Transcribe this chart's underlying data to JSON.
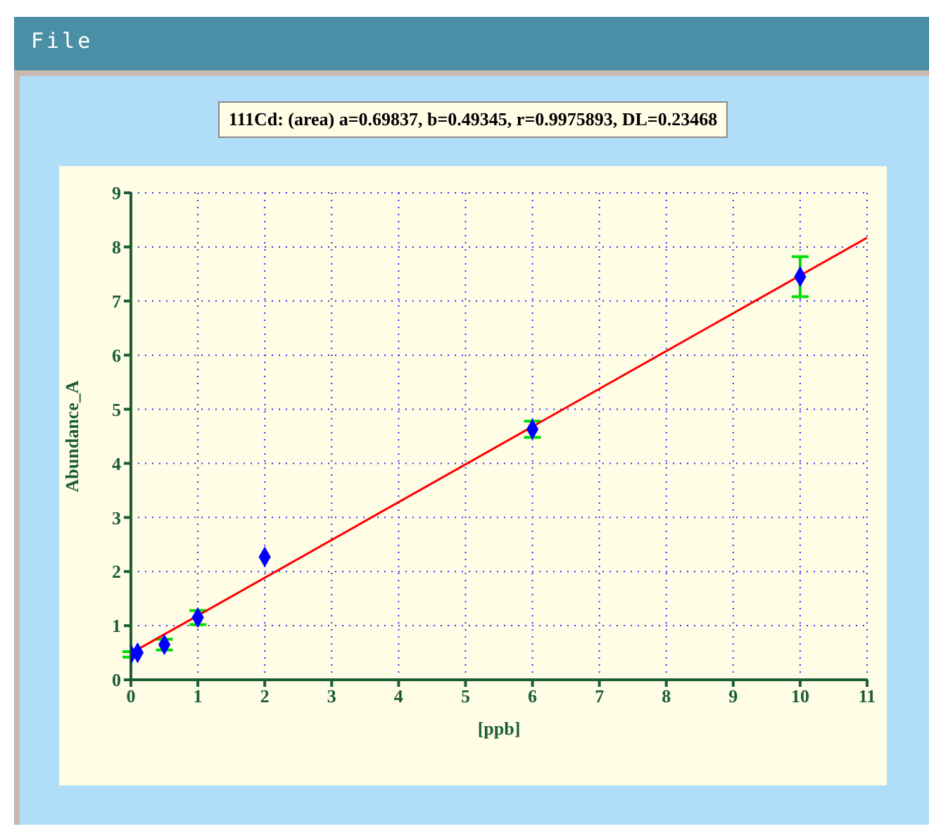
{
  "chart_data": {
    "type": "scatter",
    "title": "111Cd: (area) a=0.69837, b=0.49345, r=0.9975893, DL=0.23468",
    "xlabel": "[ppb]",
    "ylabel": "Abundance_A",
    "annotations": [
      "File"
    ],
    "xlim": [
      0,
      11
    ],
    "xticks": [
      0,
      1,
      2,
      3,
      4,
      5,
      6,
      7,
      8,
      9,
      10,
      11
    ],
    "ylim": [
      0,
      9
    ],
    "yticks": [
      0,
      1,
      2,
      3,
      4,
      5,
      6,
      7,
      8,
      9
    ],
    "grid": true,
    "series": [
      {
        "marker": "diamond",
        "color": "#0000ff",
        "x": [
          0,
          0.1,
          0.5,
          1,
          2,
          6,
          10
        ],
        "values": [
          0.47,
          0.5,
          0.65,
          1.15,
          2.27,
          4.63,
          7.45
        ],
        "errors": [
          0.05,
          null,
          0.1,
          0.13,
          null,
          0.15,
          0.37
        ]
      },
      {
        "type": "line",
        "color": "#ff0000",
        "x": [
          0,
          11
        ],
        "values": [
          0.49,
          8.17
        ]
      }
    ]
  }
}
